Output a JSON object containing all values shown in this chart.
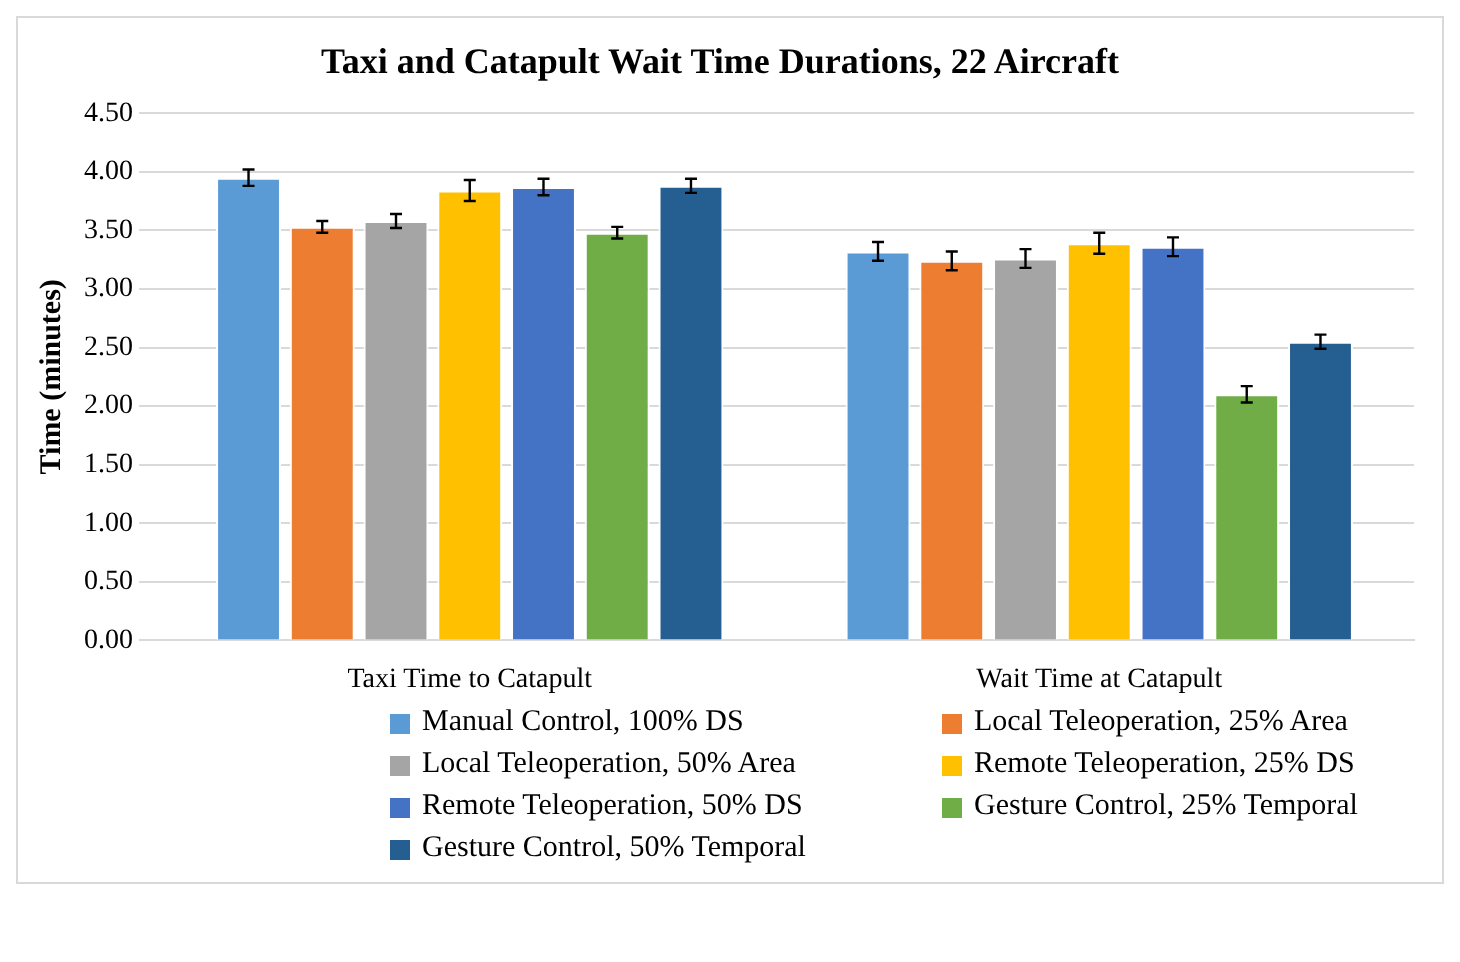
{
  "chart_data": {
    "type": "bar",
    "title": "Taxi and Catapult Wait Time Durations, 22 Aircraft",
    "ylabel": "Time (minutes)",
    "categories": [
      "Taxi Time to Catapult",
      "Wait Time at Catapult"
    ],
    "series": [
      {
        "name": "Manual Control, 100% DS",
        "color": "#5b9bd5",
        "values": [
          3.95,
          3.32
        ],
        "errors": [
          0.07,
          0.08
        ]
      },
      {
        "name": "Local Teleoperation, 25% Area",
        "color": "#ed7d31",
        "values": [
          3.53,
          3.24
        ],
        "errors": [
          0.05,
          0.08
        ]
      },
      {
        "name": "Local Teleoperation, 50% Area",
        "color": "#a5a5a5",
        "values": [
          3.58,
          3.26
        ],
        "errors": [
          0.06,
          0.08
        ]
      },
      {
        "name": "Remote Teleoperation, 25% DS",
        "color": "#ffc000",
        "values": [
          3.84,
          3.39
        ],
        "errors": [
          0.09,
          0.09
        ]
      },
      {
        "name": "Remote Teleoperation, 50% DS",
        "color": "#4472c4",
        "values": [
          3.87,
          3.36
        ],
        "errors": [
          0.07,
          0.08
        ]
      },
      {
        "name": "Gesture Control, 25% Temporal",
        "color": "#70ad47",
        "values": [
          3.48,
          2.1
        ],
        "errors": [
          0.05,
          0.07
        ]
      },
      {
        "name": "Gesture Control, 50% Temporal",
        "color": "#255e91",
        "values": [
          3.88,
          2.55
        ],
        "errors": [
          0.06,
          0.06
        ]
      }
    ],
    "ylim": [
      0,
      4.5
    ],
    "yticks": [
      {
        "value": 0,
        "label": "0.00"
      },
      {
        "value": 0.5,
        "label": "0.50"
      },
      {
        "value": 1,
        "label": "1.00"
      },
      {
        "value": 1.5,
        "label": "1.50"
      },
      {
        "value": 2,
        "label": "2.00"
      },
      {
        "value": 2.5,
        "label": "2.50"
      },
      {
        "value": 3,
        "label": "3.00"
      },
      {
        "value": 3.5,
        "label": "3.50"
      },
      {
        "value": 4,
        "label": "4.00"
      },
      {
        "value": 4.5,
        "label": "4.50"
      }
    ],
    "grid": "y",
    "legend": "bottom"
  }
}
